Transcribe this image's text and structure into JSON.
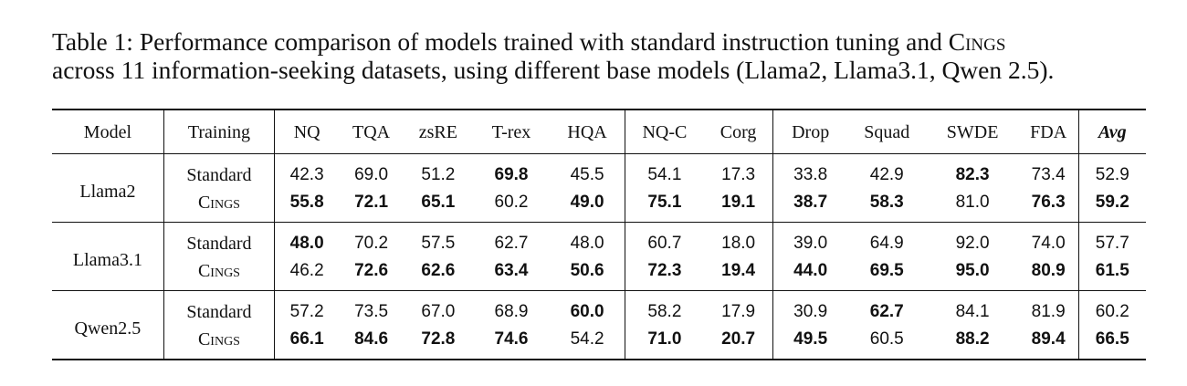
{
  "caption": {
    "line1_pre": "Table 1: Performance comparison of models trained with standard instruction tuning and C",
    "line1_sc": "ings",
    "line2": "across 11 information-seeking datasets, using different base models (Llama2, Llama3.1, Qwen 2.5)."
  },
  "table": {
    "headers": [
      "Model",
      "Training",
      "NQ",
      "TQA",
      "zsRE",
      "T-rex",
      "HQA",
      "NQ-C",
      "Corg",
      "Drop",
      "Squad",
      "SWDE",
      "FDA",
      "Avg"
    ],
    "groups": [
      {
        "model": "Llama2",
        "rows": [
          {
            "training": "Standard",
            "values": [
              "42.3",
              "69.0",
              "51.2",
              "69.8",
              "45.5",
              "54.1",
              "17.3",
              "33.8",
              "42.9",
              "82.3",
              "73.4",
              "52.9"
            ],
            "bold": [
              false,
              false,
              false,
              true,
              false,
              false,
              false,
              false,
              false,
              true,
              false,
              false
            ]
          },
          {
            "training_pre": "C",
            "training_sc": "ings",
            "values": [
              "55.8",
              "72.1",
              "65.1",
              "60.2",
              "49.0",
              "75.1",
              "19.1",
              "38.7",
              "58.3",
              "81.0",
              "76.3",
              "59.2"
            ],
            "bold": [
              true,
              true,
              true,
              false,
              true,
              true,
              true,
              true,
              true,
              false,
              true,
              true
            ]
          }
        ]
      },
      {
        "model": "Llama3.1",
        "rows": [
          {
            "training": "Standard",
            "values": [
              "48.0",
              "70.2",
              "57.5",
              "62.7",
              "48.0",
              "60.7",
              "18.0",
              "39.0",
              "64.9",
              "92.0",
              "74.0",
              "57.7"
            ],
            "bold": [
              true,
              false,
              false,
              false,
              false,
              false,
              false,
              false,
              false,
              false,
              false,
              false
            ]
          },
          {
            "training_pre": "C",
            "training_sc": "ings",
            "values": [
              "46.2",
              "72.6",
              "62.6",
              "63.4",
              "50.6",
              "72.3",
              "19.4",
              "44.0",
              "69.5",
              "95.0",
              "80.9",
              "61.5"
            ],
            "bold": [
              false,
              true,
              true,
              true,
              true,
              true,
              true,
              true,
              true,
              true,
              true,
              true
            ]
          }
        ]
      },
      {
        "model": "Qwen2.5",
        "rows": [
          {
            "training": "Standard",
            "values": [
              "57.2",
              "73.5",
              "67.0",
              "68.9",
              "60.0",
              "58.2",
              "17.9",
              "30.9",
              "62.7",
              "84.1",
              "81.9",
              "60.2"
            ],
            "bold": [
              false,
              false,
              false,
              false,
              true,
              false,
              false,
              false,
              true,
              false,
              false,
              false
            ]
          },
          {
            "training_pre": "C",
            "training_sc": "ings",
            "values": [
              "66.1",
              "84.6",
              "72.8",
              "74.6",
              "54.2",
              "71.0",
              "20.7",
              "49.5",
              "60.5",
              "88.2",
              "89.4",
              "66.5"
            ],
            "bold": [
              true,
              true,
              true,
              true,
              false,
              true,
              true,
              true,
              false,
              true,
              true,
              true
            ]
          }
        ]
      }
    ]
  }
}
